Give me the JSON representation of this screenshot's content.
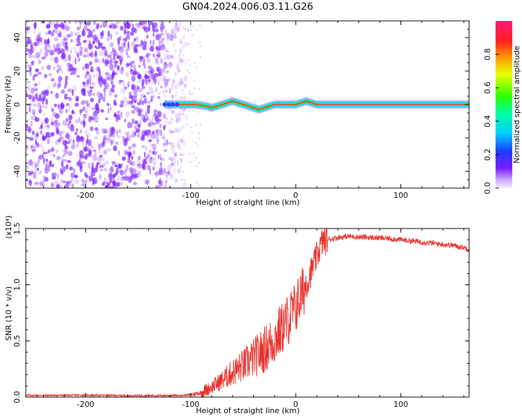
{
  "title": "GN04.2024.006.03.11.G26",
  "colors": {
    "snr_line": "#e8322e",
    "spectrogram_noise": "#7a1bff",
    "frame": "#000000"
  },
  "colorbar": {
    "label": "Normalized spectral amplitude",
    "tick_labels": [
      "0.0",
      "0.2",
      "0.4",
      "0.6",
      "0.8"
    ],
    "range": [
      0,
      1
    ],
    "colormap": "rainbow"
  },
  "chart_data": [
    {
      "type": "heatmap",
      "xlabel": "Height of straight line (km)",
      "ylabel": "Frequency (Hz)",
      "xlim": [
        -257,
        165
      ],
      "ylim": [
        -50,
        50
      ],
      "x_ticks": [
        "-200",
        "-100",
        "0",
        "100"
      ],
      "y_ticks": [
        "-40",
        "-20",
        "0",
        "20",
        "40"
      ],
      "noise_region_x": [
        -257,
        -110
      ],
      "signal_start_x": -125,
      "signal_track": {
        "x": [
          -125,
          -110,
          -95,
          -85,
          -80,
          -75,
          -70,
          -65,
          -60,
          -55,
          -50,
          -45,
          -40,
          -35,
          -30,
          -25,
          -20,
          -15,
          -10,
          -5,
          0,
          5,
          10,
          15,
          20,
          25,
          30,
          50,
          100,
          165
        ],
        "freq": [
          0,
          0,
          0,
          -1,
          -2,
          -1,
          0,
          1,
          2,
          1,
          0,
          -1,
          -2,
          -3,
          -2,
          -1,
          0,
          0,
          0,
          0,
          0,
          1,
          2,
          1,
          0,
          0,
          0,
          0,
          0,
          0
        ]
      }
    },
    {
      "type": "line",
      "xlabel": "Height of straight line (km)",
      "ylabel": "SNR (10 * v/v)",
      "y_multiplier": "(x10⁴)",
      "xlim": [
        -257,
        165
      ],
      "ylim": [
        0,
        15000
      ],
      "x_ticks": [
        "-200",
        "-100",
        "0",
        "100"
      ],
      "y_ticks": [
        "0.0",
        "0.5",
        "1.0",
        "1.5"
      ],
      "series": [
        {
          "x": [
            -257,
            -200,
            -150,
            -110,
            -100,
            -90,
            -80,
            -70,
            -60,
            -50,
            -40,
            -30,
            -20,
            -10,
            0,
            10,
            20,
            25,
            30,
            40,
            50,
            60,
            70,
            80,
            90,
            100,
            110,
            120,
            130,
            140,
            150,
            160,
            165
          ],
          "values": [
            150,
            170,
            130,
            150,
            200,
            400,
            900,
            1500,
            2200,
            2800,
            3500,
            4200,
            5200,
            6500,
            8000,
            10000,
            12500,
            13800,
            14000,
            14200,
            14300,
            14250,
            14200,
            14150,
            14100,
            14000,
            13900,
            13800,
            13700,
            13600,
            13500,
            13300,
            13200
          ]
        }
      ]
    }
  ]
}
